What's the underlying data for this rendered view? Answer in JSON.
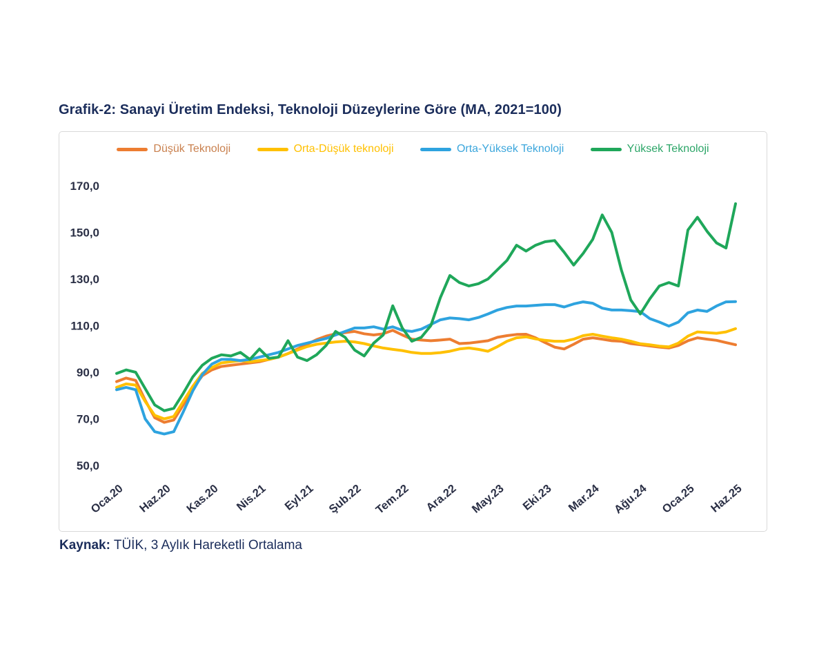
{
  "page": {
    "title": "Grafik-2: Sanayi Üretim Endeksi, Teknoloji Düzeylerine Göre (MA, 2021=100)"
  },
  "source": {
    "label": "Kaynak:",
    "text": " TÜİK, 3 Aylık Hareketli Ortalama"
  },
  "chart_data": {
    "type": "line",
    "title": "Grafik-2: Sanayi Üretim Endeksi, Teknoloji Düzeylerine Göre (MA, 2021=100)",
    "xlabel": "",
    "ylabel": "",
    "grid": false,
    "legend_position": "top",
    "ylim": [
      50,
      170
    ],
    "y_ticks": [
      170,
      150,
      130,
      110,
      90,
      70,
      50
    ],
    "y_tick_labels": [
      "170,0",
      "150,0",
      "130,0",
      "110,0",
      "90,0",
      "70,0",
      "50,0"
    ],
    "x_tick_labels": [
      "Oca.20",
      "Haz.20",
      "Kas.20",
      "Nis.21",
      "Eyl.21",
      "Şub.22",
      "Tem.22",
      "Ara.22",
      "May.23",
      "Eki.23",
      "Mar.24",
      "Ağu.24",
      "Oca.25",
      "Haz.25"
    ],
    "x_tick_indices": [
      0,
      5,
      10,
      15,
      20,
      25,
      30,
      35,
      40,
      45,
      50,
      55,
      60,
      65
    ],
    "n_points": 66,
    "x_range_note": "monthly points, Oca.20 through Haz.25, 3-month moving average",
    "series": [
      {
        "name": "Düşük Teknoloji",
        "color": "#ED7D31",
        "label_color": "#C9804E",
        "values": [
          86,
          87.5,
          86.5,
          78,
          70.5,
          68.5,
          69.5,
          76,
          83,
          88.5,
          91,
          92.5,
          93,
          93.5,
          94,
          94.5,
          95.5,
          96.5,
          98,
          100,
          102,
          104,
          105.5,
          106.5,
          107,
          107.5,
          106.5,
          106,
          106.5,
          108,
          106,
          104.2,
          103.8,
          103.5,
          103.8,
          104.2,
          102.3,
          102.5,
          103,
          103.5,
          105,
          105.7,
          106.2,
          106.3,
          104.8,
          102.7,
          100.8,
          100,
          102,
          104.2,
          104.8,
          104.2,
          103.5,
          103.3,
          102.3,
          101.8,
          101.3,
          100.8,
          100.4,
          101.5,
          103.5,
          104.8,
          104.2,
          103.7,
          102.7,
          101.8
        ]
      },
      {
        "name": "Orta-Düşük teknoloji",
        "color": "#FFC000",
        "label_color": "#FFC000",
        "values": [
          83.5,
          85,
          84.5,
          77.5,
          71.5,
          70,
          71,
          77.5,
          84,
          89.5,
          92,
          94,
          94.5,
          95,
          94.5,
          95,
          95.5,
          96.5,
          98,
          99.5,
          101,
          102,
          102.5,
          103,
          103.3,
          103,
          102.3,
          101.3,
          100.4,
          99.8,
          99.3,
          98.5,
          98.1,
          98.1,
          98.4,
          99,
          100,
          100.4,
          99.8,
          99,
          101,
          103.3,
          104.8,
          105.2,
          104.3,
          103.7,
          103.3,
          103.3,
          104.2,
          105.7,
          106.3,
          105.5,
          104.8,
          104.2,
          103.3,
          102.2,
          101.8,
          101.2,
          100.9,
          102.5,
          105.5,
          107.3,
          107,
          106.7,
          107.3,
          108.7
        ]
      },
      {
        "name": "Orta-Yüksek Teknoloji",
        "color": "#2EA3DF",
        "label_color": "#3BA6DC",
        "values": [
          82.5,
          83.5,
          82.5,
          70,
          64.5,
          63.5,
          64.5,
          73,
          82,
          89,
          93.5,
          95.5,
          95.5,
          95,
          95.5,
          96.5,
          97.5,
          98.5,
          100,
          101.5,
          102.5,
          103.5,
          104.5,
          106,
          107.5,
          109,
          109,
          109.5,
          108.5,
          109.5,
          108,
          107.5,
          108.5,
          110.5,
          112.5,
          113.3,
          113,
          112.5,
          113.5,
          115,
          116.7,
          117.8,
          118.4,
          118.4,
          118.7,
          119,
          119,
          118,
          119.3,
          120.2,
          119.6,
          117.5,
          116.7,
          116.7,
          116.4,
          116,
          113,
          111.5,
          109.8,
          111.5,
          115.5,
          116.7,
          116.1,
          118.4,
          120.2,
          120.3
        ]
      },
      {
        "name": "Yüksek Teknoloji",
        "color": "#1FA75A",
        "label_color": "#2BA567",
        "values": [
          89.5,
          91,
          90,
          83,
          76,
          73.5,
          74.5,
          81,
          88,
          93,
          96,
          97.5,
          97,
          98.5,
          95.5,
          100,
          96,
          96.5,
          103.5,
          96.5,
          95,
          97.5,
          101.5,
          107.5,
          105,
          99.5,
          97,
          102.5,
          106,
          118.5,
          109,
          103.3,
          105,
          110,
          122,
          131.5,
          128.5,
          127,
          128,
          130,
          134,
          138,
          144.5,
          142,
          144.5,
          146,
          146.5,
          141.5,
          136,
          141,
          147,
          157.5,
          150,
          134,
          121,
          115,
          121.5,
          127,
          128.5,
          127,
          151,
          156.5,
          150.5,
          145.5,
          143.3,
          162.3
        ]
      }
    ]
  }
}
